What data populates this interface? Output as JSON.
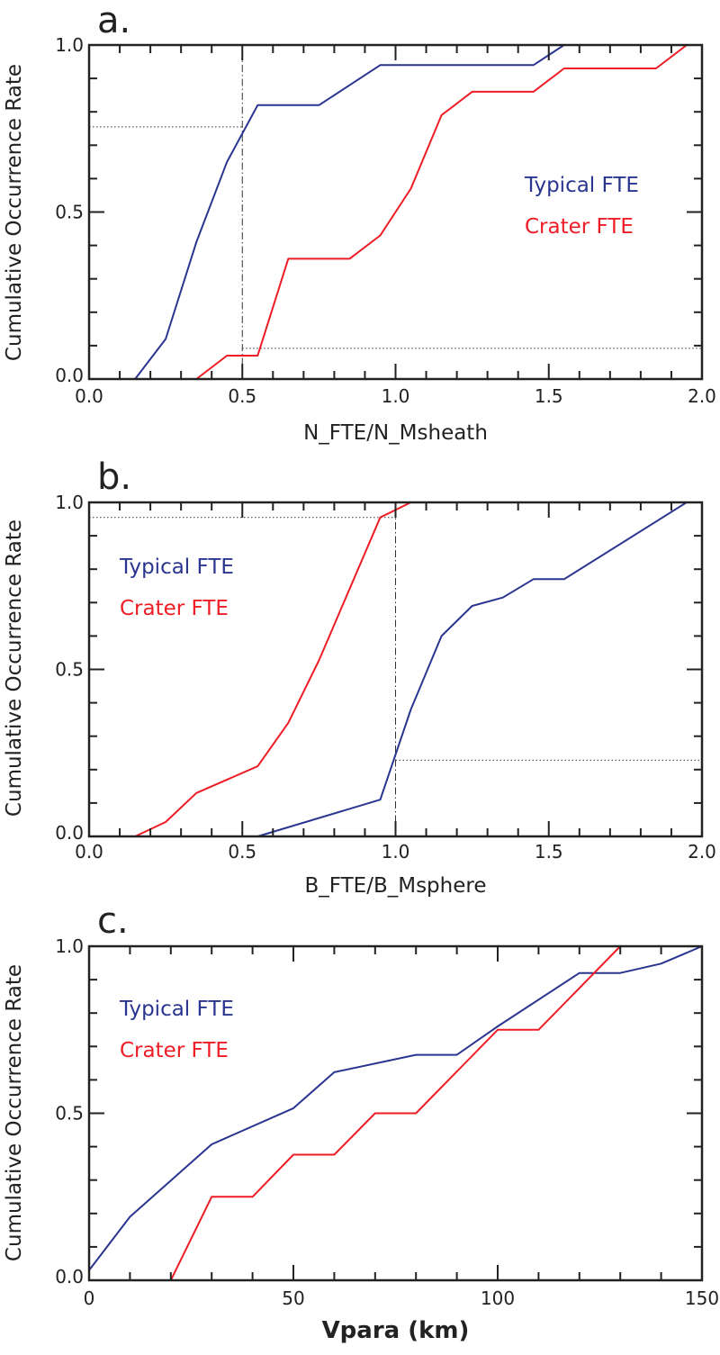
{
  "colors": {
    "typical": "#2a3590",
    "crater": "#ee1c25",
    "axis": "#222222"
  },
  "chart_data": [
    {
      "type": "line",
      "panel": "a.",
      "xlabel": "N_FTE/N_Msheath",
      "ylabel": "Cumulative Occurrence Rate",
      "xlim": [
        0,
        2.0
      ],
      "ylim": [
        0,
        1.0
      ],
      "xticks": [
        "0.0",
        "0.5",
        "1.0",
        "1.5",
        "2.0"
      ],
      "xtick_values": [
        0,
        0.5,
        1.0,
        1.5,
        2.0
      ],
      "x_minor_step": 0.1,
      "yticks": [
        "0.0",
        "0.5",
        "1.0"
      ],
      "ytick_values": [
        0,
        0.5,
        1.0
      ],
      "y_minor_step": 0.1,
      "legend_position": "right-middle",
      "series": [
        {
          "name": "Typical FTE",
          "color_key": "typical",
          "x": [
            0.15,
            0.25,
            0.35,
            0.45,
            0.55,
            0.75,
            0.95,
            1.45,
            1.55,
            2.0
          ],
          "y": [
            0,
            0.12,
            0.41,
            0.65,
            0.82,
            0.82,
            0.94,
            0.94,
            1.0,
            1.0
          ]
        },
        {
          "name": "Crater FTE",
          "color_key": "crater",
          "x": [
            0.05,
            0.35,
            0.45,
            0.55,
            0.65,
            0.85,
            0.95,
            1.05,
            1.15,
            1.25,
            1.45,
            1.55,
            1.85,
            1.95
          ],
          "y": [
            0,
            0,
            0.07,
            0.07,
            0.36,
            0.36,
            0.43,
            0.57,
            0.79,
            0.86,
            0.86,
            0.93,
            0.93,
            1.0
          ]
        }
      ],
      "reference_lines": [
        {
          "kind": "vertical",
          "style": "dashdot",
          "x": 0.5,
          "y_range": [
            0,
            1.0
          ]
        },
        {
          "kind": "horizontal",
          "style": "dotted",
          "y": 0.755,
          "x_range": [
            0,
            0.5
          ]
        },
        {
          "kind": "horizontal",
          "style": "dotted",
          "y": 0.092,
          "x_range": [
            0.5,
            2.0
          ]
        }
      ]
    },
    {
      "type": "line",
      "panel": "b.",
      "xlabel": "B_FTE/B_Msphere",
      "ylabel": "Cumulative Occurrence Rate",
      "xlim": [
        0,
        2.0
      ],
      "ylim": [
        0,
        1.0
      ],
      "xticks": [
        "0.0",
        "0.5",
        "1.0",
        "1.5",
        "2.0"
      ],
      "xtick_values": [
        0,
        0.5,
        1.0,
        1.5,
        2.0
      ],
      "x_minor_step": 0.1,
      "yticks": [
        "0.0",
        "0.5",
        "1.0"
      ],
      "ytick_values": [
        0,
        0.5,
        1.0
      ],
      "y_minor_step": 0.1,
      "legend_position": "top-left",
      "series": [
        {
          "name": "Typical FTE",
          "color_key": "typical",
          "x": [
            0.15,
            0.55,
            0.95,
            1.05,
            1.15,
            1.25,
            1.35,
            1.45,
            1.55,
            1.95
          ],
          "y": [
            0,
            0,
            0.11,
            0.38,
            0.6,
            0.69,
            0.715,
            0.77,
            0.77,
            1.0
          ]
        },
        {
          "name": "Crater FTE",
          "color_key": "crater",
          "x": [
            0.05,
            0.15,
            0.25,
            0.35,
            0.55,
            0.65,
            0.75,
            0.95,
            1.05,
            1.95
          ],
          "y": [
            0,
            0,
            0.043,
            0.13,
            0.21,
            0.34,
            0.527,
            0.955,
            1.0,
            1.0
          ]
        }
      ],
      "reference_lines": [
        {
          "kind": "vertical",
          "style": "dashdot",
          "x": 1.0,
          "y_range": [
            0,
            1.0
          ]
        },
        {
          "kind": "horizontal",
          "style": "dotted",
          "y": 0.955,
          "x_range": [
            0,
            1.0
          ]
        },
        {
          "kind": "horizontal",
          "style": "dotted",
          "y": 0.228,
          "x_range": [
            1.0,
            2.0
          ]
        }
      ]
    },
    {
      "type": "line",
      "panel": "c.",
      "xlabel": "Vpara (km)",
      "ylabel": "Cumulative Occurrence Rate",
      "xlim": [
        0,
        150
      ],
      "ylim": [
        0,
        1.0
      ],
      "xticks": [
        "0",
        "50",
        "100",
        "150"
      ],
      "xtick_values": [
        0,
        50,
        100,
        150
      ],
      "x_minor_step": 10,
      "yticks": [
        "0.0",
        "0.5",
        "1.0"
      ],
      "ytick_values": [
        0,
        0.5,
        1.0
      ],
      "y_minor_step": 0.1,
      "legend_position": "top-left",
      "series": [
        {
          "name": "Typical FTE",
          "color_key": "typical",
          "x": [
            0,
            10,
            30,
            50,
            60,
            80,
            90,
            100,
            120,
            130,
            140,
            150
          ],
          "y": [
            0.03,
            0.19,
            0.407,
            0.515,
            0.623,
            0.675,
            0.675,
            0.76,
            0.92,
            0.92,
            0.948,
            1.0
          ]
        },
        {
          "name": "Crater FTE",
          "color_key": "crater",
          "x": [
            0,
            20,
            30,
            40,
            50,
            60,
            70,
            80,
            100,
            110,
            130,
            150
          ],
          "y": [
            0,
            0,
            0.25,
            0.25,
            0.376,
            0.376,
            0.5,
            0.5,
            0.75,
            0.75,
            1.0,
            1.0
          ]
        }
      ],
      "reference_lines": []
    }
  ]
}
